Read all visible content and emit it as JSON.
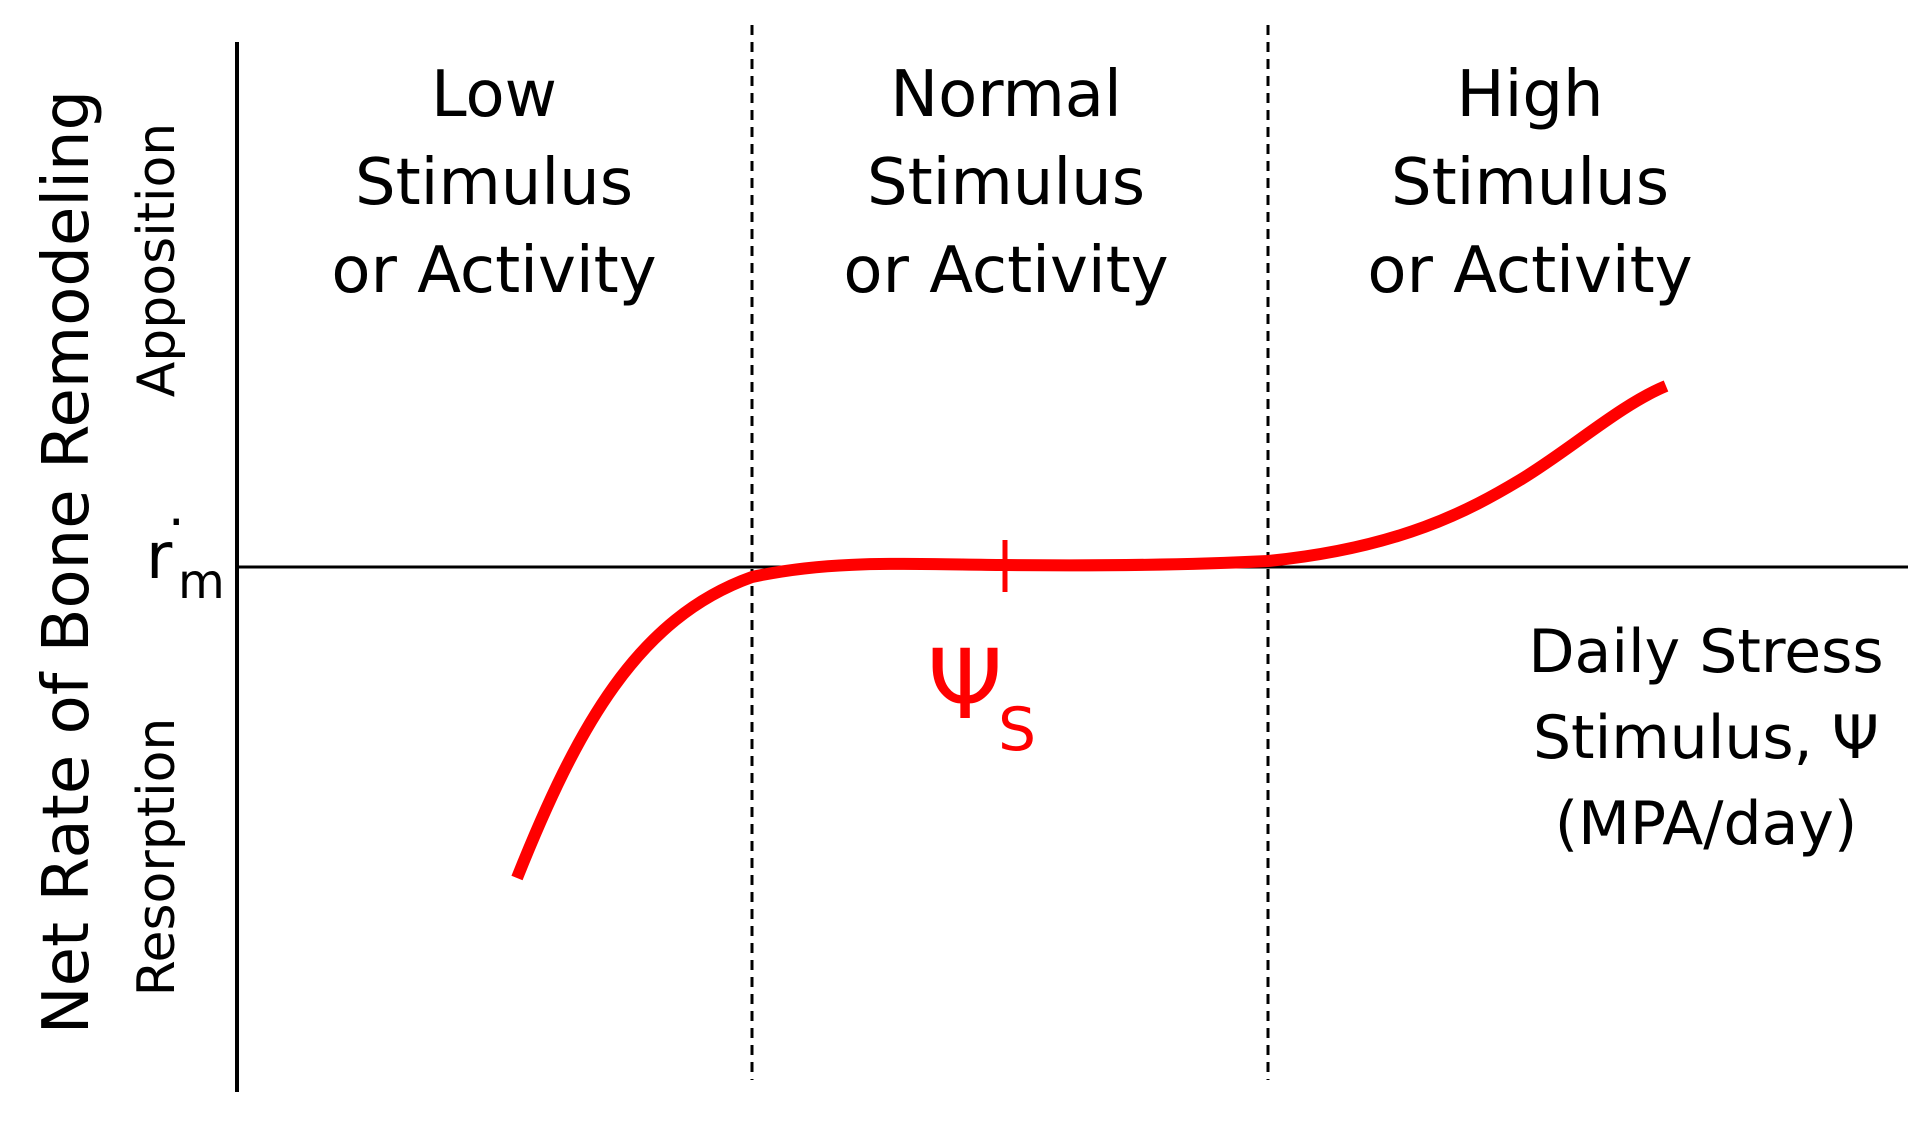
{
  "colors": {
    "curve": "#ff0000",
    "axis": "#000000",
    "background": "#ffffff"
  },
  "y_axis": {
    "title": "Net Rate of Bone Remodeling",
    "upper_label": "Apposition",
    "lower_label": "Resorption",
    "baseline_symbol": "r",
    "baseline_subscript": "m",
    "baseline_accent": "·"
  },
  "x_axis": {
    "title_lines": [
      "Daily Stress",
      "Stimulus, Ψ",
      "(MPA/day)"
    ]
  },
  "regions": [
    {
      "lines": [
        "Low",
        "Stimulus",
        "or Activity"
      ]
    },
    {
      "lines": [
        "Normal",
        "Stimulus",
        "or Activity"
      ]
    },
    {
      "lines": [
        "High",
        "Stimulus",
        "or Activity"
      ]
    }
  ],
  "setpoint": {
    "symbol": "Ψ",
    "subscript": "S"
  }
}
